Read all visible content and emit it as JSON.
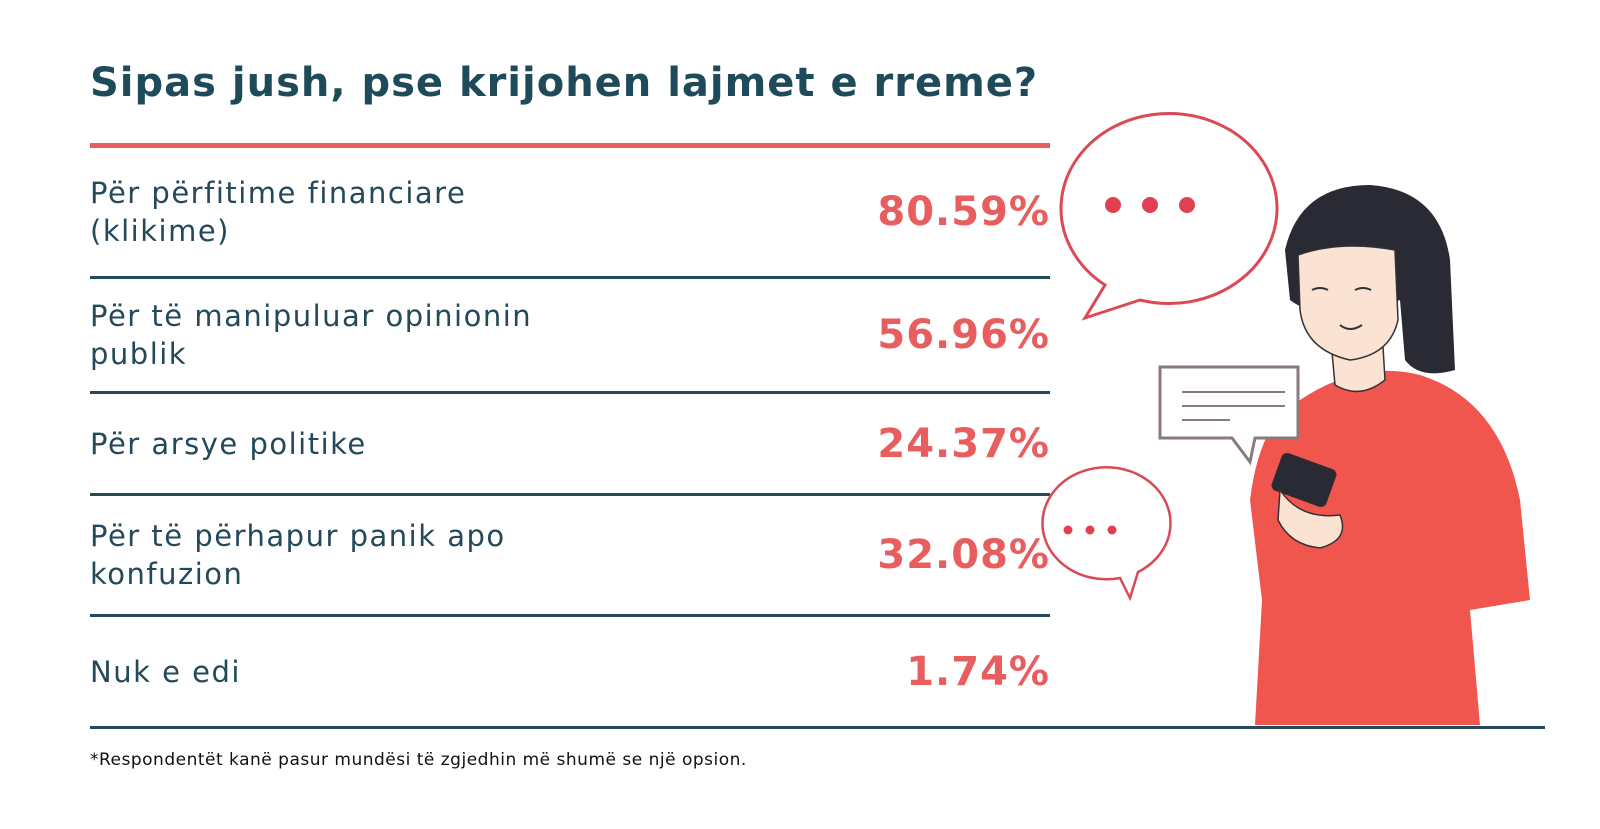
{
  "header": {
    "title": "Sipas jush, pse krijohen lajmet e rreme?"
  },
  "table": {
    "rows": [
      [
        "Për përfitime financiare (klikime)",
        "80.59%"
      ],
      [
        "Për të manipuluar opinionin publik",
        "56.96%"
      ],
      [
        "Për arsye politike",
        "24.37%"
      ],
      [
        "Për të përhapur panik apo konfuzion",
        "32.08%"
      ],
      [
        "Nuk e edi",
        "1.74%"
      ]
    ]
  },
  "footnote": "*Respondentët kanë pasur mundësi të zgjedhin më shumë se një opsion."
}
